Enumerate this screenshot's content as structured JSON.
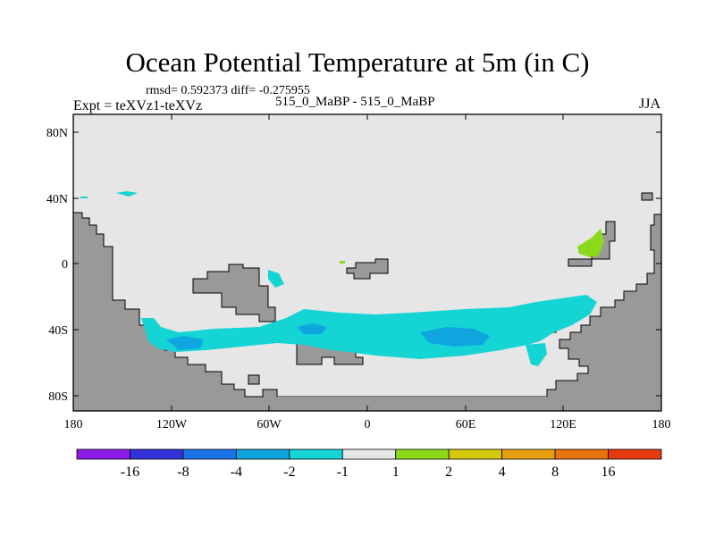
{
  "title": "Ocean Potential Temperature at 5m (in C)",
  "stats": "rmsd= 0.592373 diff= -0.275955",
  "expt_label": "Expt = teXVz1-teXVz",
  "case_label": "515_0_MaBP - 515_0_MaBP",
  "season": "JJA",
  "map": {
    "projection": "cylindrical equidistant",
    "lon_range": [
      -180,
      180
    ],
    "lat_range": [
      -90,
      90
    ],
    "lon_ticks": [
      "180",
      "120W",
      "60W",
      "0",
      "60E",
      "120E",
      "180"
    ],
    "lat_ticks": [
      "80N",
      "40N",
      "0",
      "40S",
      "80S"
    ],
    "ocean_color": "#e6e6e6",
    "land_color": "#999999"
  },
  "colorbar": {
    "colors": [
      "#8a1ce6",
      "#3333d9",
      "#1a73e6",
      "#0fa6e0",
      "#14d4d4",
      "#e6e6e6",
      "#8ad91a",
      "#d4c90a",
      "#e6a00f",
      "#e6730f",
      "#e63a0f"
    ],
    "labels": [
      "-16",
      "-8",
      "-4",
      "-2",
      "-1",
      "1",
      "2",
      "4",
      "8",
      "16"
    ]
  }
}
